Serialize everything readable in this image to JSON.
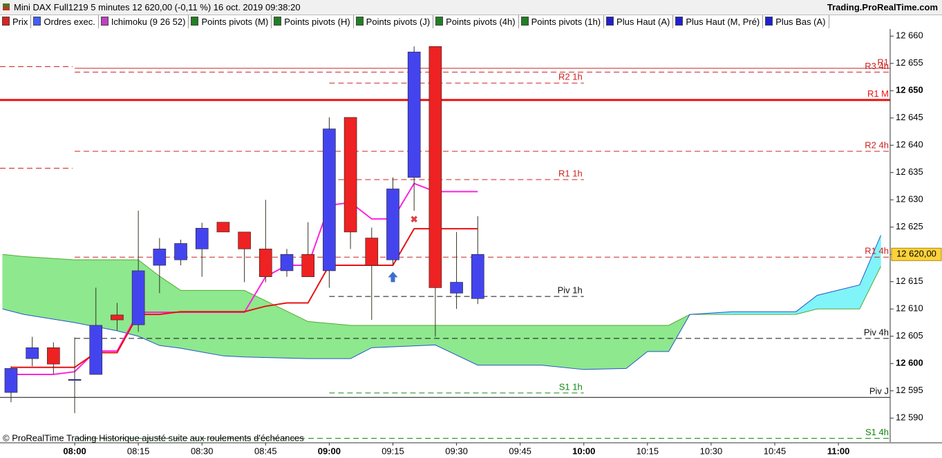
{
  "header": {
    "title": "Mini DAX Full1219 5 minutes 12 620,00 (-0,11 %) 16 oct. 2019 09:38:20",
    "site": "Trading.ProRealTime.com"
  },
  "toolbar": [
    {
      "label": "Prix",
      "color": "#e02020"
    },
    {
      "label": "Ordres exec.",
      "color": "#4060ff"
    },
    {
      "label": "Ichimoku (9 26 52)",
      "color": "#c040c0"
    },
    {
      "label": "Points pivots (M)",
      "color": "#208020"
    },
    {
      "label": "Points pivots (H)",
      "color": "#208020"
    },
    {
      "label": "Points pivots (J)",
      "color": "#208020"
    },
    {
      "label": "Points pivots (4h)",
      "color": "#208020"
    },
    {
      "label": "Points pivots (1h)",
      "color": "#208020"
    },
    {
      "label": "Plus Haut (A)",
      "color": "#2020d0"
    },
    {
      "label": "Plus Haut (M, Pré)",
      "color": "#2020d0"
    },
    {
      "label": "Plus Bas (A)",
      "color": "#2020d0"
    }
  ],
  "footer": "© ProRealTime Trading Historique ajusté suite aux roulements d'échéances",
  "chart_data": {
    "type": "candlestick",
    "x": [
      465,
      470,
      475,
      480,
      485,
      490,
      495,
      500,
      505,
      510,
      515,
      520,
      525,
      530,
      535,
      540,
      545,
      550,
      555,
      560,
      565,
      570,
      575
    ],
    "open": [
      12594.7,
      12600.9,
      12602.9,
      12597.1,
      12598.0,
      12608.9,
      12607.1,
      12618.0,
      12619.0,
      12621.0,
      12625.9,
      12624.1,
      12621.0,
      12617.0,
      12620.0,
      12617.0,
      12645.1,
      12623.0,
      12619.0,
      12634.1,
      12658.1,
      12612.9,
      12611.9
    ],
    "high": [
      12599.5,
      12604.9,
      12603.9,
      12604.8,
      12613.9,
      12611.1,
      12628.0,
      12623.0,
      12622.7,
      12625.8,
      12625.9,
      12624.1,
      12630.0,
      12621.0,
      12625.9,
      12645.1,
      12645.1,
      12624.9,
      12634.1,
      12658.1,
      12658.1,
      12624.1,
      12627.0
    ],
    "low": [
      12592.9,
      12599.5,
      12598.1,
      12590.9,
      12598.0,
      12606.1,
      12605.8,
      12612.9,
      12618.0,
      12615.9,
      12624.1,
      12614.9,
      12614.9,
      12615.9,
      12615.9,
      12613.9,
      12621.0,
      12608.0,
      12618.0,
      12628.0,
      12604.9,
      12610.0,
      12610.9
    ],
    "close": [
      12599.1,
      12602.9,
      12599.9,
      12597.1,
      12607.0,
      12608.0,
      12617.0,
      12621.0,
      12622.0,
      12624.8,
      12624.1,
      12621.0,
      12615.9,
      12620.0,
      12615.9,
      12643.0,
      12624.1,
      12618.0,
      12632.0,
      12657.1,
      12613.9,
      12614.9,
      12620.0
    ],
    "up_color": "#4444ee",
    "down_color": "#ee2222",
    "wick_color": "#333322",
    "series": [
      {
        "color": "#ff22dd",
        "values": [
          12598.0,
          12598.0,
          12598.0,
          12598.5,
          12602.3,
          12602.3,
          12609.4,
          12609.4,
          12609.4,
          12609.4,
          12609.4,
          12609.4,
          12615.9,
          12618.0,
          12618.0,
          12629.0,
          12629.5,
          12626.5,
          12626.5,
          12633.0,
          12631.5,
          12631.5,
          12631.5
        ]
      },
      {
        "color": "#e81010",
        "values": [
          12599.3,
          12599.3,
          12599.3,
          12599.3,
          12602.0,
          12602.0,
          12609.0,
          12609.0,
          12609.5,
          12609.5,
          12609.5,
          12609.5,
          12610.5,
          12611.1,
          12611.1,
          12618.0,
          12618.0,
          12618.0,
          12618.0,
          12624.7,
          12624.7,
          12624.7,
          12624.7
        ]
      }
    ],
    "cloud": {
      "x": [
        463,
        468,
        480,
        490,
        495,
        500,
        505,
        515,
        520,
        535,
        545,
        550,
        565,
        575,
        590,
        600,
        610,
        615,
        620,
        625,
        635,
        650,
        655,
        665,
        670
      ],
      "span_a": [
        12620.0,
        12619.6,
        12619.0,
        12619.0,
        12619.0,
        12616.0,
        12613.4,
        12613.4,
        12613.4,
        12607.7,
        12607.0,
        12607.0,
        12607.0,
        12607.0,
        12607.0,
        12607.0,
        12607.0,
        12607.0,
        12607.0,
        12609.0,
        12609.0,
        12609.0,
        12610.0,
        12610.0,
        12617.8
      ],
      "span_b": [
        12610.0,
        12609.0,
        12607.5,
        12606.0,
        12605.0,
        12603.3,
        12602.8,
        12601.4,
        12601.2,
        12600.9,
        12600.9,
        12602.9,
        12603.4,
        12599.7,
        12599.7,
        12598.9,
        12599.1,
        12602.2,
        12602.2,
        12609.0,
        12609.5,
        12609.5,
        12612.5,
        12614.4,
        12623.5
      ],
      "up_color": "#8ee88e",
      "down_color": "#80f4f8",
      "a_color": "#55aa33",
      "b_color": "#2255cc"
    },
    "levels": [
      {
        "label": "R1 M",
        "value": 12648.3,
        "color": "#ee1111",
        "dashed": false,
        "width": 3,
        "xrange": [
          462.4,
          672.2
        ]
      },
      {
        "label": "R1",
        "value": 12654.1,
        "color": "#cc2222",
        "dashed": false,
        "width": 1,
        "xrange": [
          480,
          672.2
        ]
      },
      {
        "label": "R3 4h",
        "value": 12653.4,
        "color": "#cc2222",
        "dashed": true,
        "width": 1,
        "xrange": [
          480,
          672.2
        ]
      },
      {
        "label": "R2 4h",
        "value": 12638.9,
        "color": "#cc2222",
        "dashed": true,
        "width": 1,
        "xrange": [
          480,
          672.2
        ]
      },
      {
        "label": "R1 4h",
        "value": 12619.5,
        "color": "#cc2222",
        "dashed": true,
        "width": 1,
        "xrange": [
          480,
          672.2
        ]
      },
      {
        "label": "Piv 4h",
        "value": 12604.6,
        "color": "#111111",
        "dashed": true,
        "width": 1,
        "xrange": [
          480,
          672.2
        ]
      },
      {
        "label": "Piv J",
        "value": 12593.8,
        "color": "#111111",
        "dashed": false,
        "width": 1,
        "xrange": [
          462.4,
          672.2
        ]
      },
      {
        "label": "S1 4h",
        "value": 12586.3,
        "color": "#118811",
        "dashed": true,
        "width": 1,
        "xrange": [
          480,
          672.2
        ]
      },
      {
        "label": "R2 1h",
        "value": 12651.4,
        "color": "#cc2222",
        "dashed": true,
        "width": 1,
        "xrange": [
          540,
          600
        ]
      },
      {
        "label": "R1 1h",
        "value": 12633.7,
        "color": "#cc2222",
        "dashed": true,
        "width": 1,
        "xrange": [
          540,
          600
        ]
      },
      {
        "label": "Piv 1h",
        "value": 12612.3,
        "color": "#111111",
        "dashed": true,
        "width": 1,
        "xrange": [
          540,
          600
        ]
      },
      {
        "label": "S1 1h",
        "value": 12594.6,
        "color": "#118811",
        "dashed": true,
        "width": 1,
        "xrange": [
          540,
          600
        ]
      },
      {
        "value": 12654.4,
        "color": "#cc2222",
        "dashed": true,
        "width": 1,
        "xrange": [
          462.4,
          479.5
        ]
      },
      {
        "value": 12635.8,
        "color": "#cc2222",
        "dashed": true,
        "width": 1,
        "xrange": [
          462.4,
          479.5
        ]
      }
    ],
    "last_price": {
      "value": 12620,
      "label": "12 620,00"
    },
    "xlim": [
      462.4,
      672.2
    ],
    "xticks": [
      {
        "value": 480,
        "label": "08:00"
      },
      {
        "value": 495,
        "label": "08:15"
      },
      {
        "value": 510,
        "label": "08:30"
      },
      {
        "value": 525,
        "label": "08:45"
      },
      {
        "value": 540,
        "label": "09:00"
      },
      {
        "value": 555,
        "label": "09:15"
      },
      {
        "value": 570,
        "label": "09:30"
      },
      {
        "value": 585,
        "label": "09:45"
      },
      {
        "value": 600,
        "label": "10:00"
      },
      {
        "value": 615,
        "label": "10:15"
      },
      {
        "value": 630,
        "label": "10:30"
      },
      {
        "value": 645,
        "label": "10:45"
      },
      {
        "value": 660,
        "label": "11:00"
      }
    ],
    "ylim": [
      12585.6,
      12661.3
    ],
    "yticks": [
      {
        "value": 12590,
        "label": "12 590"
      },
      {
        "value": 12595,
        "label": "12 595"
      },
      {
        "value": 12600,
        "label": "12 600"
      },
      {
        "value": 12605,
        "label": "12 605"
      },
      {
        "value": 12610,
        "label": "12 610"
      },
      {
        "value": 12615,
        "label": "12 615"
      },
      {
        "value": 12620,
        "label": "12 620"
      },
      {
        "value": 12625,
        "label": "12 625"
      },
      {
        "value": 12630,
        "label": "12 630"
      },
      {
        "value": 12635,
        "label": "12 635"
      },
      {
        "value": 12640,
        "label": "12 640"
      },
      {
        "value": 12645,
        "label": "12 645"
      },
      {
        "value": 12650,
        "label": "12 650"
      },
      {
        "value": 12655,
        "label": "12 655"
      },
      {
        "value": 12660,
        "label": "12 660"
      }
    ]
  }
}
